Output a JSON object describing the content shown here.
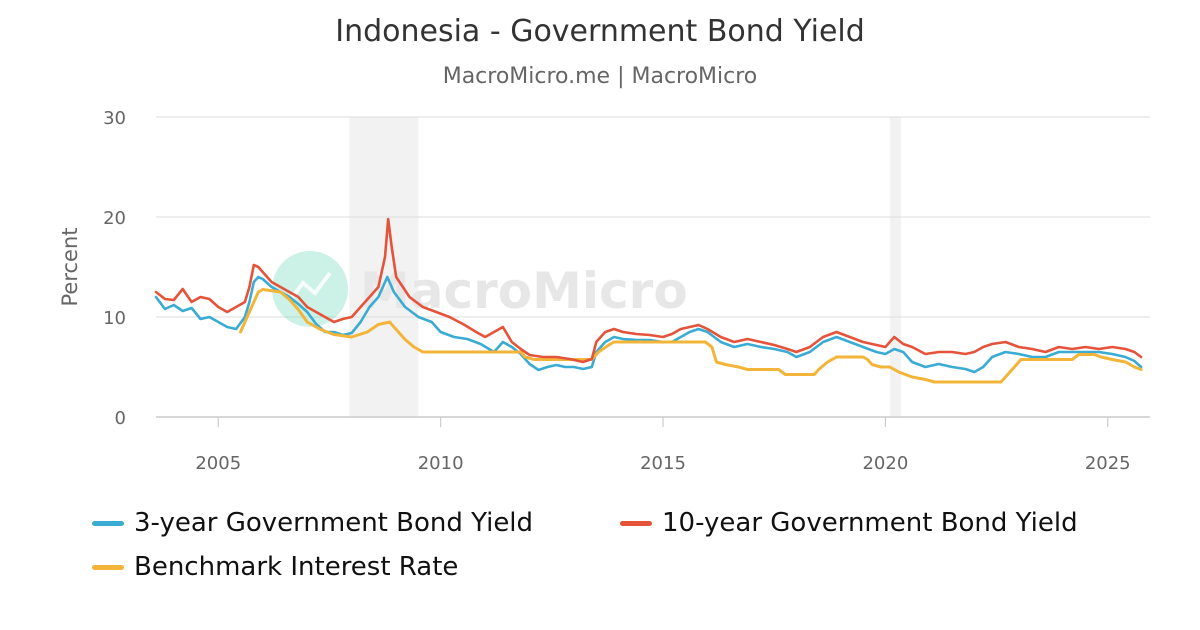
{
  "chart_data": {
    "type": "line",
    "title": "Indonesia - Government Bond Yield",
    "subtitle": "MacroMicro.me | MacroMicro",
    "watermark": "MacroMicro",
    "ylabel": "Percent",
    "xlim": [
      2003.6,
      2025.95
    ],
    "ylim": [
      0,
      30
    ],
    "x_ticks": [
      2005,
      2010,
      2015,
      2020,
      2025
    ],
    "y_ticks": [
      0,
      10,
      20,
      30
    ],
    "grid": true,
    "legend_position": "bottom",
    "recession_bands": [
      [
        2007.95,
        2009.5
      ],
      [
        2020.1,
        2020.35
      ]
    ],
    "series": [
      {
        "name": "3-year Government Bond Yield",
        "color": "#3aabd2",
        "points": [
          [
            2003.6,
            12
          ],
          [
            2003.8,
            10.8
          ],
          [
            2004.0,
            11.2
          ],
          [
            2004.2,
            10.6
          ],
          [
            2004.4,
            10.9
          ],
          [
            2004.6,
            9.8
          ],
          [
            2004.8,
            10.0
          ],
          [
            2005.0,
            9.5
          ],
          [
            2005.2,
            9.0
          ],
          [
            2005.4,
            8.8
          ],
          [
            2005.6,
            10.0
          ],
          [
            2005.7,
            11.5
          ],
          [
            2005.8,
            13.5
          ],
          [
            2005.9,
            14.0
          ],
          [
            2006.0,
            13.8
          ],
          [
            2006.2,
            13.0
          ],
          [
            2006.4,
            12.5
          ],
          [
            2006.6,
            12.0
          ],
          [
            2006.8,
            11.3
          ],
          [
            2007.0,
            10.5
          ],
          [
            2007.2,
            9.3
          ],
          [
            2007.4,
            8.5
          ],
          [
            2007.6,
            8.5
          ],
          [
            2007.8,
            8.2
          ],
          [
            2008.0,
            8.4
          ],
          [
            2008.2,
            9.5
          ],
          [
            2008.4,
            11.0
          ],
          [
            2008.6,
            12.0
          ],
          [
            2008.8,
            14.0
          ],
          [
            2008.95,
            12.5
          ],
          [
            2009.2,
            11.0
          ],
          [
            2009.5,
            10.0
          ],
          [
            2009.8,
            9.5
          ],
          [
            2010.0,
            8.5
          ],
          [
            2010.3,
            8.0
          ],
          [
            2010.6,
            7.8
          ],
          [
            2010.9,
            7.3
          ],
          [
            2011.2,
            6.5
          ],
          [
            2011.4,
            7.5
          ],
          [
            2011.6,
            7.0
          ],
          [
            2011.8,
            6.3
          ],
          [
            2012.0,
            5.3
          ],
          [
            2012.2,
            4.7
          ],
          [
            2012.4,
            5.0
          ],
          [
            2012.6,
            5.2
          ],
          [
            2012.8,
            5.0
          ],
          [
            2013.0,
            5.0
          ],
          [
            2013.2,
            4.8
          ],
          [
            2013.4,
            5.0
          ],
          [
            2013.5,
            6.5
          ],
          [
            2013.7,
            7.5
          ],
          [
            2013.9,
            8.0
          ],
          [
            2014.1,
            7.8
          ],
          [
            2014.4,
            7.7
          ],
          [
            2014.7,
            7.7
          ],
          [
            2015.0,
            7.5
          ],
          [
            2015.2,
            7.5
          ],
          [
            2015.4,
            8.0
          ],
          [
            2015.6,
            8.5
          ],
          [
            2015.8,
            8.8
          ],
          [
            2016.0,
            8.5
          ],
          [
            2016.3,
            7.5
          ],
          [
            2016.6,
            7.0
          ],
          [
            2016.9,
            7.3
          ],
          [
            2017.2,
            7.0
          ],
          [
            2017.5,
            6.8
          ],
          [
            2017.8,
            6.5
          ],
          [
            2018.0,
            6.0
          ],
          [
            2018.3,
            6.5
          ],
          [
            2018.6,
            7.5
          ],
          [
            2018.9,
            8.0
          ],
          [
            2019.2,
            7.5
          ],
          [
            2019.5,
            7.0
          ],
          [
            2019.8,
            6.5
          ],
          [
            2020.0,
            6.3
          ],
          [
            2020.2,
            6.8
          ],
          [
            2020.4,
            6.5
          ],
          [
            2020.6,
            5.5
          ],
          [
            2020.9,
            5.0
          ],
          [
            2021.2,
            5.3
          ],
          [
            2021.5,
            5.0
          ],
          [
            2021.8,
            4.8
          ],
          [
            2022.0,
            4.5
          ],
          [
            2022.2,
            5.0
          ],
          [
            2022.4,
            6.0
          ],
          [
            2022.7,
            6.5
          ],
          [
            2023.0,
            6.3
          ],
          [
            2023.3,
            6.0
          ],
          [
            2023.6,
            6.0
          ],
          [
            2023.9,
            6.5
          ],
          [
            2024.2,
            6.5
          ],
          [
            2024.5,
            6.5
          ],
          [
            2024.8,
            6.5
          ],
          [
            2025.1,
            6.3
          ],
          [
            2025.4,
            6.0
          ],
          [
            2025.6,
            5.6
          ],
          [
            2025.75,
            5.0
          ]
        ]
      },
      {
        "name": "10-year Government Bond Yield",
        "color": "#e5533b",
        "points": [
          [
            2003.6,
            12.5
          ],
          [
            2003.8,
            11.8
          ],
          [
            2004.0,
            11.7
          ],
          [
            2004.2,
            12.8
          ],
          [
            2004.4,
            11.5
          ],
          [
            2004.6,
            12.0
          ],
          [
            2004.8,
            11.8
          ],
          [
            2005.0,
            11.0
          ],
          [
            2005.2,
            10.5
          ],
          [
            2005.4,
            11.0
          ],
          [
            2005.6,
            11.5
          ],
          [
            2005.7,
            13.0
          ],
          [
            2005.8,
            15.2
          ],
          [
            2005.9,
            15.0
          ],
          [
            2006.0,
            14.5
          ],
          [
            2006.2,
            13.5
          ],
          [
            2006.4,
            13.0
          ],
          [
            2006.6,
            12.5
          ],
          [
            2006.8,
            12.0
          ],
          [
            2007.0,
            11.0
          ],
          [
            2007.2,
            10.5
          ],
          [
            2007.4,
            10.0
          ],
          [
            2007.6,
            9.5
          ],
          [
            2007.8,
            9.8
          ],
          [
            2008.0,
            10.0
          ],
          [
            2008.2,
            11.0
          ],
          [
            2008.4,
            12.0
          ],
          [
            2008.6,
            13.0
          ],
          [
            2008.75,
            16.0
          ],
          [
            2008.82,
            19.8
          ],
          [
            2008.9,
            17.0
          ],
          [
            2009.0,
            14.0
          ],
          [
            2009.3,
            12.0
          ],
          [
            2009.6,
            11.0
          ],
          [
            2009.9,
            10.5
          ],
          [
            2010.2,
            10.0
          ],
          [
            2010.5,
            9.3
          ],
          [
            2010.8,
            8.5
          ],
          [
            2011.0,
            8.0
          ],
          [
            2011.2,
            8.5
          ],
          [
            2011.4,
            9.0
          ],
          [
            2011.6,
            7.5
          ],
          [
            2011.8,
            6.8
          ],
          [
            2012.0,
            6.2
          ],
          [
            2012.3,
            6.0
          ],
          [
            2012.6,
            6.0
          ],
          [
            2012.9,
            5.8
          ],
          [
            2013.2,
            5.5
          ],
          [
            2013.4,
            5.8
          ],
          [
            2013.5,
            7.5
          ],
          [
            2013.7,
            8.5
          ],
          [
            2013.9,
            8.8
          ],
          [
            2014.1,
            8.5
          ],
          [
            2014.4,
            8.3
          ],
          [
            2014.7,
            8.2
          ],
          [
            2015.0,
            8.0
          ],
          [
            2015.2,
            8.3
          ],
          [
            2015.4,
            8.8
          ],
          [
            2015.6,
            9.0
          ],
          [
            2015.8,
            9.2
          ],
          [
            2016.0,
            8.8
          ],
          [
            2016.3,
            8.0
          ],
          [
            2016.6,
            7.5
          ],
          [
            2016.9,
            7.8
          ],
          [
            2017.2,
            7.5
          ],
          [
            2017.5,
            7.2
          ],
          [
            2017.8,
            6.8
          ],
          [
            2018.0,
            6.5
          ],
          [
            2018.3,
            7.0
          ],
          [
            2018.6,
            8.0
          ],
          [
            2018.9,
            8.5
          ],
          [
            2019.2,
            8.0
          ],
          [
            2019.5,
            7.5
          ],
          [
            2019.8,
            7.2
          ],
          [
            2020.0,
            7.0
          ],
          [
            2020.2,
            8.0
          ],
          [
            2020.4,
            7.3
          ],
          [
            2020.6,
            7.0
          ],
          [
            2020.9,
            6.3
          ],
          [
            2021.2,
            6.5
          ],
          [
            2021.5,
            6.5
          ],
          [
            2021.8,
            6.3
          ],
          [
            2022.0,
            6.5
          ],
          [
            2022.2,
            7.0
          ],
          [
            2022.4,
            7.3
          ],
          [
            2022.7,
            7.5
          ],
          [
            2023.0,
            7.0
          ],
          [
            2023.3,
            6.8
          ],
          [
            2023.6,
            6.5
          ],
          [
            2023.9,
            7.0
          ],
          [
            2024.2,
            6.8
          ],
          [
            2024.5,
            7.0
          ],
          [
            2024.8,
            6.8
          ],
          [
            2025.1,
            7.0
          ],
          [
            2025.4,
            6.8
          ],
          [
            2025.6,
            6.5
          ],
          [
            2025.75,
            6.0
          ]
        ]
      },
      {
        "name": "Benchmark Interest Rate",
        "color": "#f2b53a",
        "points": [
          [
            2005.5,
            8.5
          ],
          [
            2005.6,
            9.5
          ],
          [
            2005.75,
            11.0
          ],
          [
            2005.9,
            12.5
          ],
          [
            2006.0,
            12.75
          ],
          [
            2006.4,
            12.5
          ],
          [
            2006.6,
            11.75
          ],
          [
            2006.8,
            10.75
          ],
          [
            2007.0,
            9.5
          ],
          [
            2007.3,
            8.75
          ],
          [
            2007.6,
            8.25
          ],
          [
            2008.0,
            8.0
          ],
          [
            2008.35,
            8.5
          ],
          [
            2008.6,
            9.25
          ],
          [
            2008.85,
            9.5
          ],
          [
            2009.0,
            8.75
          ],
          [
            2009.2,
            7.75
          ],
          [
            2009.4,
            7.0
          ],
          [
            2009.6,
            6.5
          ],
          [
            2010.0,
            6.5
          ],
          [
            2011.0,
            6.5
          ],
          [
            2011.8,
            6.5
          ],
          [
            2011.9,
            6.0
          ],
          [
            2012.1,
            5.75
          ],
          [
            2013.4,
            5.75
          ],
          [
            2013.55,
            6.5
          ],
          [
            2013.8,
            7.25
          ],
          [
            2013.9,
            7.5
          ],
          [
            2015.0,
            7.5
          ],
          [
            2015.95,
            7.5
          ],
          [
            2016.1,
            7.0
          ],
          [
            2016.2,
            5.5
          ],
          [
            2016.4,
            5.25
          ],
          [
            2016.7,
            5.0
          ],
          [
            2016.9,
            4.75
          ],
          [
            2017.6,
            4.75
          ],
          [
            2017.75,
            4.25
          ],
          [
            2018.4,
            4.25
          ],
          [
            2018.5,
            4.75
          ],
          [
            2018.7,
            5.5
          ],
          [
            2018.9,
            6.0
          ],
          [
            2019.5,
            6.0
          ],
          [
            2019.6,
            5.75
          ],
          [
            2019.7,
            5.25
          ],
          [
            2019.9,
            5.0
          ],
          [
            2020.1,
            5.0
          ],
          [
            2020.3,
            4.5
          ],
          [
            2020.6,
            4.0
          ],
          [
            2020.9,
            3.75
          ],
          [
            2021.1,
            3.5
          ],
          [
            2022.6,
            3.5
          ],
          [
            2022.75,
            4.25
          ],
          [
            2022.9,
            5.0
          ],
          [
            2023.05,
            5.75
          ],
          [
            2024.2,
            5.75
          ],
          [
            2024.35,
            6.25
          ],
          [
            2024.7,
            6.25
          ],
          [
            2024.85,
            6.0
          ],
          [
            2025.1,
            5.75
          ],
          [
            2025.4,
            5.5
          ],
          [
            2025.6,
            5.0
          ],
          [
            2025.75,
            4.75
          ]
        ]
      }
    ]
  }
}
